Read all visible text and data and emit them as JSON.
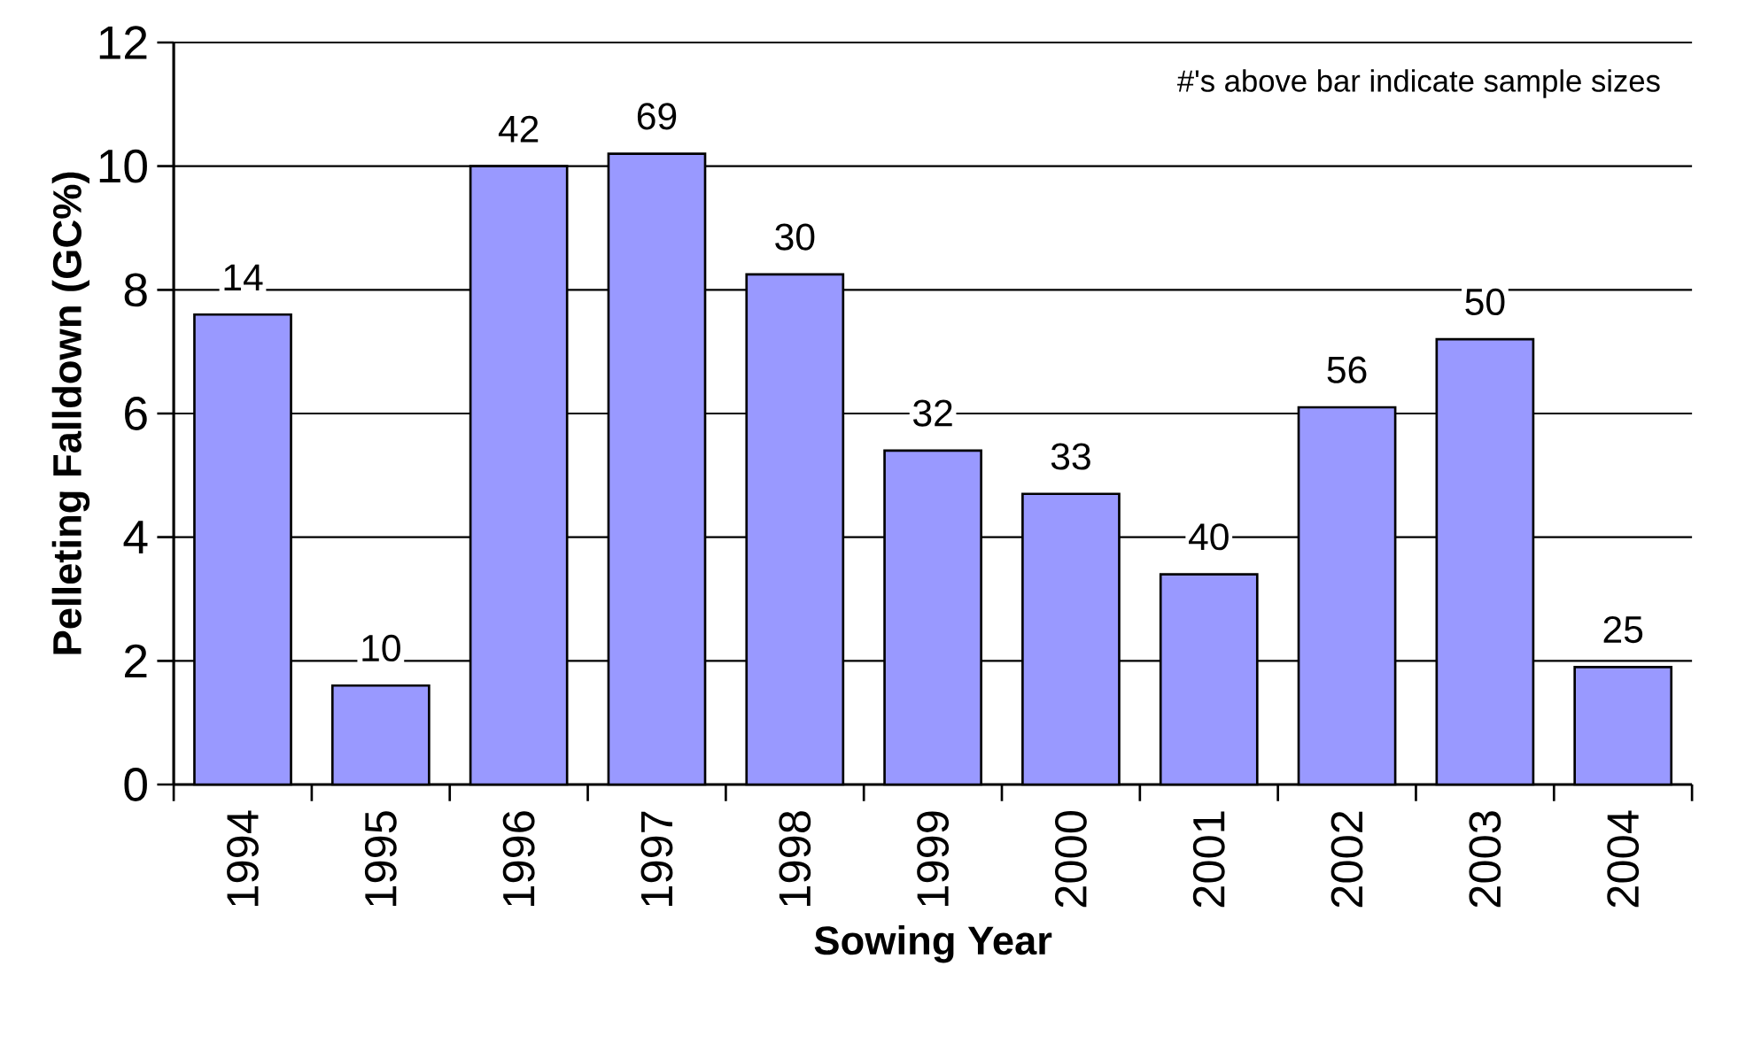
{
  "chart_data": {
    "type": "bar",
    "xlabel": "Sowing Year",
    "ylabel": "Pelleting Falldown (GC%)",
    "categories": [
      "1994",
      "1995",
      "1996",
      "1997",
      "1998",
      "1999",
      "2000",
      "2001",
      "2002",
      "2003",
      "2004"
    ],
    "values": [
      7.6,
      1.6,
      10.0,
      10.2,
      8.25,
      5.4,
      4.7,
      3.4,
      6.1,
      7.2,
      1.9
    ],
    "color": "#9999ff",
    "ylim": [
      0,
      12
    ],
    "yticks": [
      0,
      2,
      4,
      6,
      8,
      10,
      12
    ],
    "grid": "y",
    "annotations": [
      "#'s above bar indicate sample sizes",
      {
        "text": "14",
        "x": "1994",
        "y": 7.6
      },
      {
        "text": "10",
        "x": "1995",
        "y": 1.6
      },
      {
        "text": "42",
        "x": "1996",
        "y": 10.0
      },
      {
        "text": "69",
        "x": "1997",
        "y": 10.2
      },
      {
        "text": "30",
        "x": "1998",
        "y": 8.25
      },
      {
        "text": "32",
        "x": "1999",
        "y": 5.4
      },
      {
        "text": "33",
        "x": "2000",
        "y": 4.7
      },
      {
        "text": "40",
        "x": "2001",
        "y": 3.4
      },
      {
        "text": "56",
        "x": "2002",
        "y": 6.1
      },
      {
        "text": "50",
        "x": "2003",
        "y": 7.2
      },
      {
        "text": "25",
        "x": "2004",
        "y": 1.9
      }
    ]
  }
}
